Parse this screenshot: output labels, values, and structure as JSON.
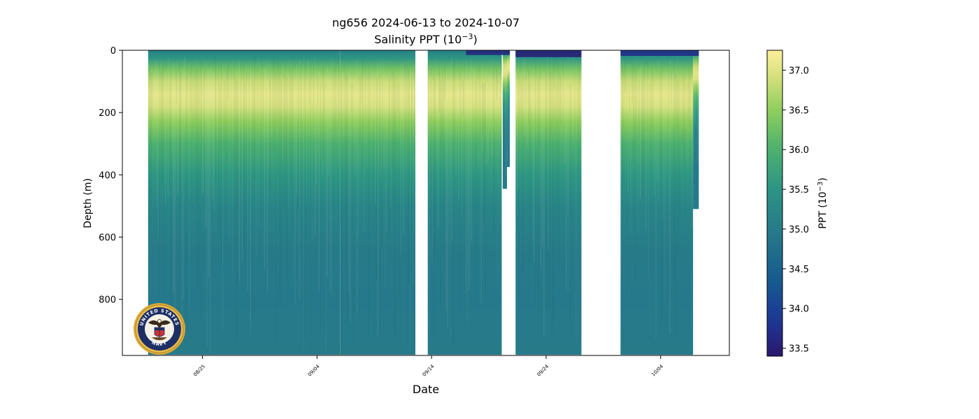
{
  "chart_data": {
    "type": "heatmap",
    "title": "ng656 2024-06-13 to 2024-10-07",
    "subtitle_base": "Salinity PPT (10",
    "subtitle_exp": "−3",
    "subtitle_end": ")",
    "xlabel": "Date",
    "ylabel": "Depth (m)",
    "colorbar_label_base": "PPT (10",
    "colorbar_label_exp": "−3",
    "colorbar_label_end": ")",
    "x_range_days_label": [
      "2024-08-18",
      "2024-10-10"
    ],
    "y_range": [
      980,
      0
    ],
    "y_inverted": true,
    "x_ticks": [
      {
        "date": "2024-08-25",
        "label": "08/25"
      },
      {
        "date": "2024-09-04",
        "label": "09/04"
      },
      {
        "date": "2024-09-14",
        "label": "09/14"
      },
      {
        "date": "2024-09-24",
        "label": "09/24"
      },
      {
        "date": "2024-10-04",
        "label": "10/04"
      }
    ],
    "y_ticks": [
      {
        "value": 0,
        "label": "0"
      },
      {
        "value": 200,
        "label": "200"
      },
      {
        "value": 400,
        "label": "400"
      },
      {
        "value": 600,
        "label": "600"
      },
      {
        "value": 800,
        "label": "800"
      }
    ],
    "colorbar": {
      "colormap": "haline",
      "range": [
        33.4,
        37.25
      ],
      "ticks": [
        {
          "value": 33.5,
          "label": "33.5"
        },
        {
          "value": 34.0,
          "label": "34.0"
        },
        {
          "value": 34.5,
          "label": "34.5"
        },
        {
          "value": 35.0,
          "label": "35.0"
        },
        {
          "value": 35.5,
          "label": "35.5"
        },
        {
          "value": 36.0,
          "label": "36.0"
        },
        {
          "value": 36.5,
          "label": "36.5"
        },
        {
          "value": 37.0,
          "label": "37.0"
        }
      ]
    },
    "data_segments": [
      {
        "start": "2024-08-20 06:00",
        "end": "2024-09-06 00:00",
        "max_depth": 978
      },
      {
        "start": "2024-09-06 00:00",
        "end": "2024-09-12 14:00",
        "max_depth": 978
      },
      {
        "start": "2024-09-13 16:00",
        "end": "2024-09-20 03:00",
        "max_depth": 978
      },
      {
        "start": "2024-09-20 05:00",
        "end": "2024-09-20 14:00",
        "max_depth": 445
      },
      {
        "start": "2024-09-20 14:00",
        "end": "2024-09-20 20:00",
        "max_depth": 375
      },
      {
        "start": "2024-09-21 08:00",
        "end": "2024-09-27 02:00",
        "max_depth": 978
      },
      {
        "start": "2024-09-30 12:00",
        "end": "2024-10-06 20:00",
        "max_depth": 978
      },
      {
        "start": "2024-10-06 20:00",
        "end": "2024-10-07 08:00",
        "max_depth": 510
      }
    ],
    "salinity_profile": [
      {
        "depth": 0,
        "salinity": 35.1
      },
      {
        "depth": 25,
        "salinity": 35.5
      },
      {
        "depth": 60,
        "salinity": 36.3
      },
      {
        "depth": 100,
        "salinity": 36.85
      },
      {
        "depth": 140,
        "salinity": 37.05
      },
      {
        "depth": 180,
        "salinity": 36.95
      },
      {
        "depth": 230,
        "salinity": 36.5
      },
      {
        "depth": 300,
        "salinity": 36.0
      },
      {
        "depth": 400,
        "salinity": 35.55
      },
      {
        "depth": 500,
        "salinity": 35.2
      },
      {
        "depth": 650,
        "salinity": 35.0
      },
      {
        "depth": 800,
        "salinity": 34.95
      },
      {
        "depth": 978,
        "salinity": 35.0
      }
    ],
    "surface_fresh_layers": [
      {
        "start": "2024-09-17 00:00",
        "end": "2024-09-20 20:00",
        "salinity": 33.6,
        "depth": 15
      },
      {
        "start": "2024-09-21 08:00",
        "end": "2024-09-27 02:00",
        "salinity": 33.5,
        "depth": 22
      },
      {
        "start": "2024-09-30 12:00",
        "end": "2024-10-07 08:00",
        "salinity": 33.7,
        "depth": 18
      }
    ],
    "grid": false,
    "legend": "colorbar-right"
  },
  "logo": {
    "name": "United States Navy seal",
    "text_top": "UNITED STATES",
    "text_bottom": "NAVY"
  }
}
